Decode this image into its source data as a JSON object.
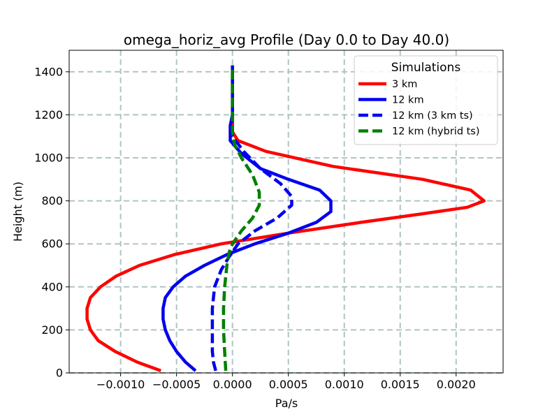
{
  "chart_data": {
    "type": "line",
    "title": "omega_horiz_avg Profile (Day 0.0 to Day 40.0)",
    "xlabel": "Pa/s",
    "ylabel": "Height (m)",
    "xlim": [
      -0.00146,
      0.00242
    ],
    "ylim": [
      0,
      1500
    ],
    "grid": true,
    "xticks": [
      -0.001,
      -0.0005,
      0.0,
      0.0005,
      0.001,
      0.0015,
      0.002
    ],
    "xtick_labels": [
      "−0.0010",
      "−0.0005",
      "0.0000",
      "0.0005",
      "0.0010",
      "0.0015",
      "0.0020"
    ],
    "yticks": [
      0,
      200,
      400,
      600,
      800,
      1000,
      1200,
      1400
    ],
    "ytick_labels": [
      "0",
      "200",
      "400",
      "600",
      "800",
      "1000",
      "1200",
      "1400"
    ],
    "legend": {
      "title": "Simulations",
      "position": "top-right"
    },
    "series": [
      {
        "name": "3 km",
        "color": "#ff0000",
        "style": "solid",
        "points": [
          [
            -0.00064,
            10
          ],
          [
            -0.00085,
            50
          ],
          [
            -0.00105,
            100
          ],
          [
            -0.0012,
            150
          ],
          [
            -0.00127,
            200
          ],
          [
            -0.0013,
            250
          ],
          [
            -0.0013,
            300
          ],
          [
            -0.00127,
            350
          ],
          [
            -0.00118,
            400
          ],
          [
            -0.00104,
            450
          ],
          [
            -0.00083,
            500
          ],
          [
            -0.00052,
            550
          ],
          [
            -0.0001,
            600
          ],
          [
            0.0005,
            650
          ],
          [
            0.00115,
            700
          ],
          [
            0.0017,
            740
          ],
          [
            0.0021,
            770
          ],
          [
            0.00225,
            800
          ],
          [
            0.00213,
            850
          ],
          [
            0.0017,
            900
          ],
          [
            0.0009,
            960
          ],
          [
            0.0003,
            1030
          ],
          [
            5e-05,
            1080
          ],
          [
            0.0,
            1120
          ],
          [
            0.0,
            1200
          ],
          [
            0.0,
            1300
          ],
          [
            0.0,
            1430
          ]
        ]
      },
      {
        "name": "12 km",
        "color": "#0000ee",
        "style": "solid",
        "points": [
          [
            -0.00033,
            10
          ],
          [
            -0.00042,
            50
          ],
          [
            -0.0005,
            100
          ],
          [
            -0.00056,
            150
          ],
          [
            -0.0006,
            200
          ],
          [
            -0.00062,
            250
          ],
          [
            -0.00062,
            300
          ],
          [
            -0.0006,
            350
          ],
          [
            -0.00053,
            400
          ],
          [
            -0.00042,
            450
          ],
          [
            -0.00025,
            500
          ],
          [
            -5e-05,
            550
          ],
          [
            0.0002,
            600
          ],
          [
            0.0005,
            650
          ],
          [
            0.00075,
            700
          ],
          [
            0.00088,
            750
          ],
          [
            0.00088,
            800
          ],
          [
            0.00078,
            850
          ],
          [
            0.0005,
            900
          ],
          [
            0.00025,
            950
          ],
          [
            8e-05,
            1020
          ],
          [
            -2e-05,
            1080
          ],
          [
            -2e-05,
            1150
          ],
          [
            0.0,
            1200
          ],
          [
            0.0,
            1300
          ],
          [
            0.0,
            1430
          ]
        ]
      },
      {
        "name": "12 km (3 km ts)",
        "color": "#0000ee",
        "style": "dashed",
        "points": [
          [
            -0.00015,
            10
          ],
          [
            -0.00017,
            50
          ],
          [
            -0.00018,
            100
          ],
          [
            -0.00018,
            200
          ],
          [
            -0.00018,
            300
          ],
          [
            -0.00016,
            400
          ],
          [
            -0.0001,
            480
          ],
          [
            -3e-05,
            540
          ],
          [
            5e-05,
            600
          ],
          [
            0.0002,
            660
          ],
          [
            0.0004,
            720
          ],
          [
            0.00053,
            780
          ],
          [
            0.00053,
            820
          ],
          [
            0.00043,
            880
          ],
          [
            0.00025,
            950
          ],
          [
            0.0001,
            1030
          ],
          [
            0.0,
            1100
          ],
          [
            -1e-05,
            1150
          ],
          [
            0.0,
            1200
          ],
          [
            0.0,
            1300
          ],
          [
            0.0,
            1430
          ]
        ]
      },
      {
        "name": "12 km (hybrid ts)",
        "color": "#008000",
        "style": "dashed",
        "points": [
          [
            -6e-05,
            10
          ],
          [
            -7e-05,
            100
          ],
          [
            -8e-05,
            200
          ],
          [
            -8e-05,
            300
          ],
          [
            -7e-05,
            400
          ],
          [
            -5e-05,
            500
          ],
          [
            -3e-05,
            560
          ],
          [
            0.0,
            600
          ],
          [
            8e-05,
            660
          ],
          [
            0.00018,
            720
          ],
          [
            0.00024,
            780
          ],
          [
            0.00024,
            840
          ],
          [
            0.00018,
            920
          ],
          [
            8e-05,
            1000
          ],
          [
            2e-05,
            1060
          ],
          [
            0.0,
            1120
          ],
          [
            0.0,
            1200
          ],
          [
            0.0,
            1300
          ],
          [
            0.0,
            1430
          ]
        ]
      }
    ]
  }
}
